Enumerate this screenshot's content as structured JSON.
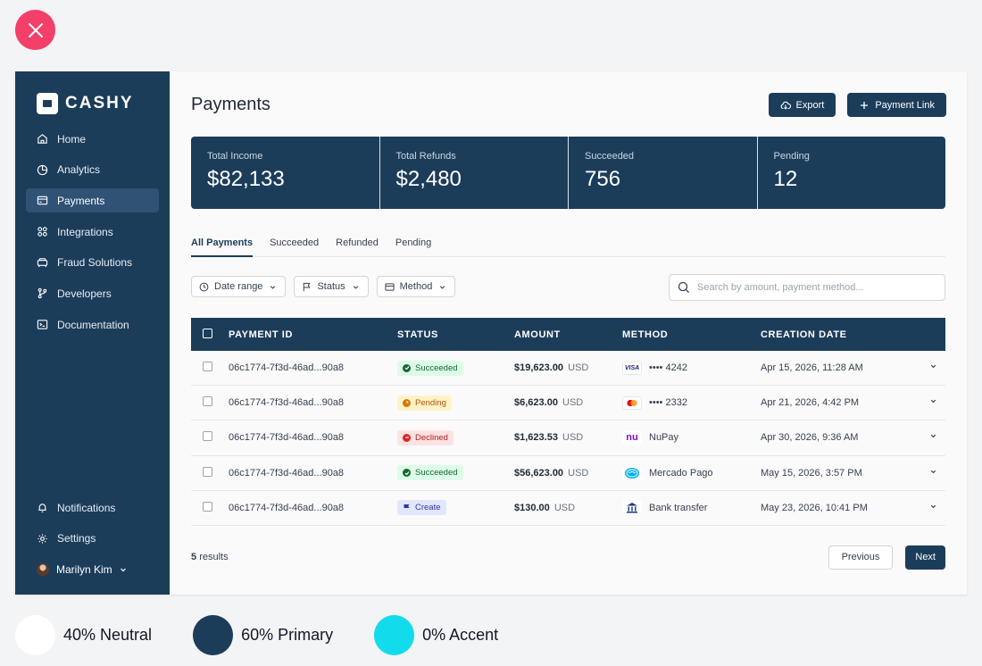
{
  "app": {
    "brand": "CASHY"
  },
  "sidebar": {
    "items": [
      {
        "label": "Home",
        "icon": "home-icon"
      },
      {
        "label": "Analytics",
        "icon": "pie-chart-icon"
      },
      {
        "label": "Payments",
        "icon": "card-icon",
        "active": true
      },
      {
        "label": "Integrations",
        "icon": "grid-icon"
      },
      {
        "label": "Fraud Solutions",
        "icon": "car-icon"
      },
      {
        "label": "Developers",
        "icon": "branch-icon"
      },
      {
        "label": "Documentation",
        "icon": "terminal-icon"
      }
    ],
    "bottom": [
      {
        "label": "Notifications",
        "icon": "bell-icon"
      },
      {
        "label": "Settings",
        "icon": "gear-icon"
      }
    ],
    "user": {
      "name": "Marilyn Kim"
    }
  },
  "header": {
    "title": "Payments",
    "export_label": "Export",
    "payment_link_label": "Payment Link"
  },
  "stats": [
    {
      "label": "Total Income",
      "value": "$82,133"
    },
    {
      "label": "Total Refunds",
      "value": "$2,480"
    },
    {
      "label": "Succeeded",
      "value": "756"
    },
    {
      "label": "Pending",
      "value": "12"
    }
  ],
  "tabs": [
    {
      "label": "All Payments",
      "active": true
    },
    {
      "label": "Succeeded"
    },
    {
      "label": "Refunded"
    },
    {
      "label": "Pending"
    }
  ],
  "filters": {
    "date_range": "Date range",
    "status": "Status",
    "method": "Method",
    "search_placeholder": "Search by amount, payment method..."
  },
  "table": {
    "columns": [
      "PAYMENT ID",
      "STATUS",
      "AMOUNT",
      "METHOD",
      "CREATION DATE"
    ],
    "rows": [
      {
        "id": "06c1774-7f3d-46ad...90a8",
        "status": "Succeeded",
        "amount": "$19,623.00",
        "currency": "USD",
        "method": "•••• 4242",
        "method_icon": "VISA",
        "date": "Apr 15, 2026, 11:28 AM"
      },
      {
        "id": "06c1774-7f3d-46ad...90a8",
        "status": "Pending",
        "amount": "$6,623.00",
        "currency": "USD",
        "method": "•••• 2332",
        "method_icon": "mastercard-icon",
        "date": "Apr 21, 2026, 4:42 PM"
      },
      {
        "id": "06c1774-7f3d-46ad...90a8",
        "status": "Declined",
        "amount": "$1,623.53",
        "currency": "USD",
        "method": "NuPay",
        "method_icon": "nu",
        "date": "Apr 30, 2026, 9:36 AM"
      },
      {
        "id": "06c1774-7f3d-46ad...90a8",
        "status": "Succeeded",
        "amount": "$56,623.00",
        "currency": "USD",
        "method": "Mercado Pago",
        "method_icon": "mercado-pago-icon",
        "date": "May 15, 2026, 3:57 PM"
      },
      {
        "id": "06c1774-7f3d-46ad...90a8",
        "status": "Create",
        "amount": "$130.00",
        "currency": "USD",
        "method": "Bank transfer",
        "method_icon": "bank-icon",
        "date": "May 23, 2026, 10:41 PM"
      }
    ]
  },
  "footer": {
    "results_count": "5",
    "results_label": "results",
    "previous_label": "Previous",
    "next_label": "Next"
  },
  "palette": [
    {
      "label": "40% Neutral",
      "color": "#ffffff"
    },
    {
      "label": "60% Primary",
      "color": "#1c3d5a"
    },
    {
      "label": "0% Accent",
      "color": "#12dcec"
    }
  ],
  "colors": {
    "primary": "#1c3d5a",
    "close": "#f43f6a"
  }
}
